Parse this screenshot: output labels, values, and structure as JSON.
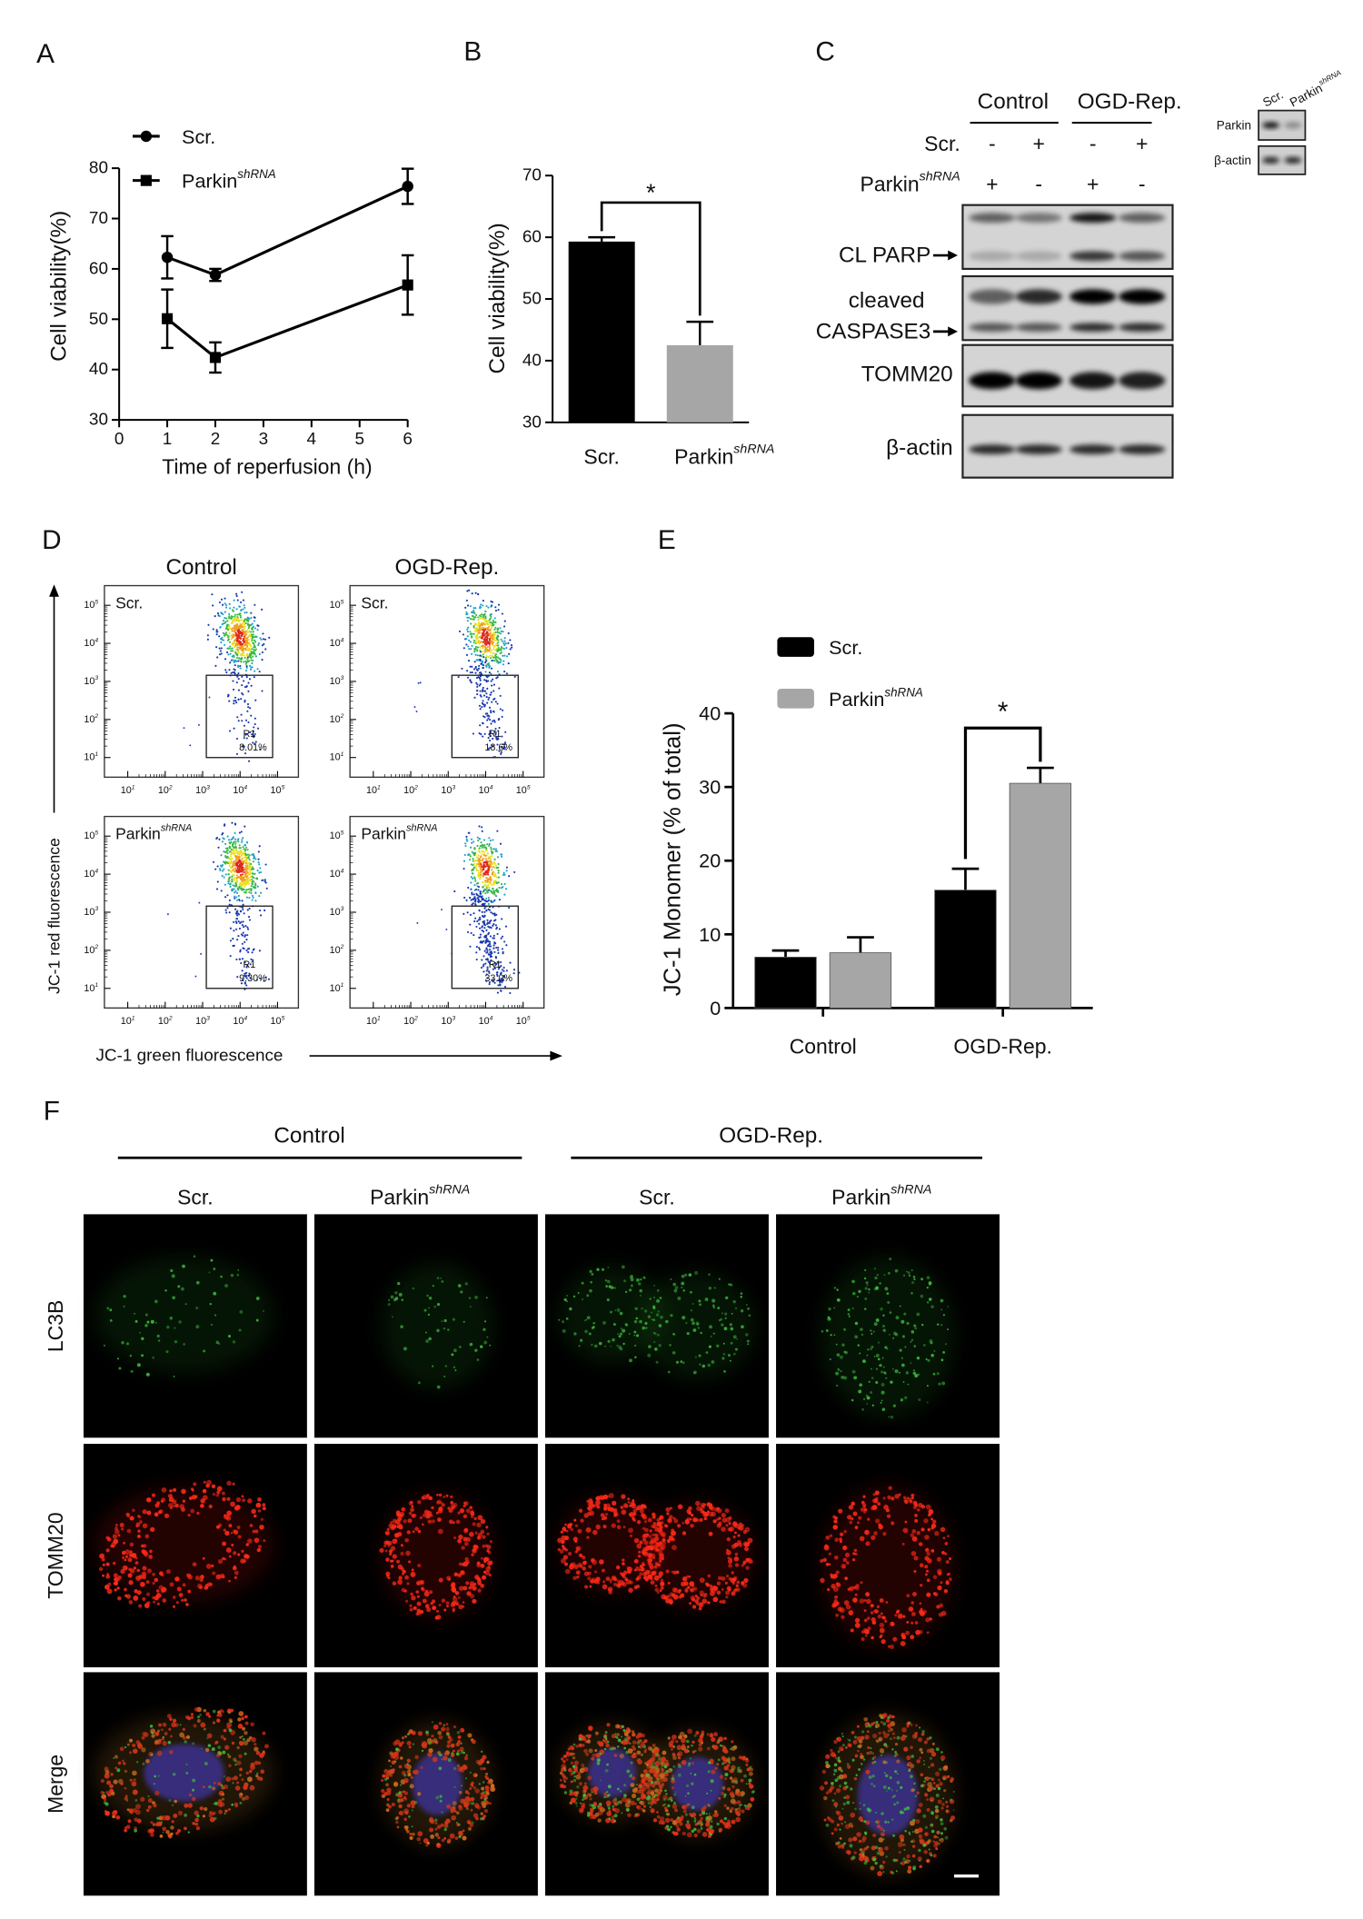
{
  "panel_labels": [
    "A",
    "B",
    "C",
    "D",
    "E",
    "F"
  ],
  "chart_data": [
    {
      "type": "line",
      "xlabel": "Time of reperfusion (h)",
      "ylabel": "Cell viability(%)",
      "x": [
        1,
        2,
        6
      ],
      "xlim": [
        0,
        6
      ],
      "xticks": [
        0,
        1,
        2,
        3,
        4,
        5,
        6
      ],
      "ylim": [
        30,
        80
      ],
      "yticks": [
        30,
        40,
        50,
        60,
        70,
        80
      ],
      "legend": "top-left",
      "series": [
        {
          "name": "Scr.",
          "marker": "circle",
          "color": "#000000",
          "values": [
            62.3,
            58.8,
            76.4
          ],
          "errors": [
            4.2,
            1.2,
            3.5
          ]
        },
        {
          "name": "Parkin",
          "name_sup": "shRNA",
          "marker": "square",
          "color": "#000000",
          "values": [
            50.1,
            42.4,
            56.8
          ],
          "errors": [
            5.8,
            3.0,
            5.9
          ]
        }
      ]
    },
    {
      "type": "bar",
      "ylabel": "Cell viability(%)",
      "categories": [
        {
          "text": "Scr."
        },
        {
          "text": "Parkin",
          "sup": "shRNA"
        }
      ],
      "values": [
        59.3,
        42.5
      ],
      "errors": [
        0.7,
        3.8
      ],
      "colors": [
        "#000000",
        "#a6a6a6"
      ],
      "ylim": [
        30,
        70
      ],
      "yticks": [
        30,
        40,
        50,
        60,
        70
      ],
      "significance": "*"
    },
    {
      "type": "grouped_bar",
      "ylabel": "JC-1 Monomer (% of total)",
      "categories": [
        "Control",
        "OGD-Rep."
      ],
      "ylim": [
        0,
        40
      ],
      "yticks": [
        0,
        10,
        20,
        30,
        40
      ],
      "legend": "top-left",
      "significance": "*",
      "series": [
        {
          "name": "Scr.",
          "color": "#000000",
          "values": [
            6.9,
            16.0
          ],
          "errors": [
            0.9,
            2.9
          ]
        },
        {
          "name": "Parkin",
          "name_sup": "shRNA",
          "color": "#a6a6a6",
          "values": [
            7.5,
            30.5
          ],
          "errors": [
            2.1,
            2.1
          ]
        }
      ]
    }
  ],
  "blot": {
    "groups": [
      "Control",
      "OGD-Rep."
    ],
    "conditions": [
      {
        "text": "Scr.",
        "signs": [
          "-",
          "+",
          "-",
          "+"
        ]
      },
      {
        "text": "Parkin",
        "sup": "shRNA",
        "signs": [
          "+",
          "-",
          "+",
          "-"
        ]
      }
    ],
    "rows": [
      {
        "label": [
          "CL PARP"
        ],
        "arrow": true
      },
      {
        "label": [
          "cleaved",
          "CASPASE3"
        ],
        "arrow": true
      },
      {
        "label": [
          "TOMM20"
        ]
      },
      {
        "label": [
          "β-actin"
        ]
      }
    ],
    "inset": {
      "lanes": [
        {
          "text": "Scr."
        },
        {
          "text": "Parkin",
          "sup": "shRNA"
        }
      ],
      "rows": [
        "Parkin",
        "β-actin"
      ]
    }
  },
  "flow": {
    "columns": [
      "Control",
      "OGD-Rep."
    ],
    "rows": [
      {
        "text": "Scr."
      },
      {
        "text": "Parkin",
        "sup": "shRNA"
      }
    ],
    "gate": "R1",
    "percentages": [
      [
        "8.01%",
        "18.6%"
      ],
      [
        "9.30%",
        "33.0%"
      ]
    ],
    "tick_base": "10",
    "tick_exponents": [
      "1",
      "2",
      "3",
      "4",
      "5"
    ],
    "ylabel": "JC-1 red fluorescence",
    "xlabel": "JC-1 green fluorescence"
  },
  "microscopy": {
    "groups": [
      "Control",
      "OGD-Rep."
    ],
    "columns": [
      {
        "text": "Scr."
      },
      {
        "text": "Parkin",
        "sup": "shRNA"
      },
      {
        "text": "Scr."
      },
      {
        "text": "Parkin",
        "sup": "shRNA"
      }
    ],
    "rows": [
      "LC3B",
      "TOMM20",
      "Merge"
    ]
  }
}
